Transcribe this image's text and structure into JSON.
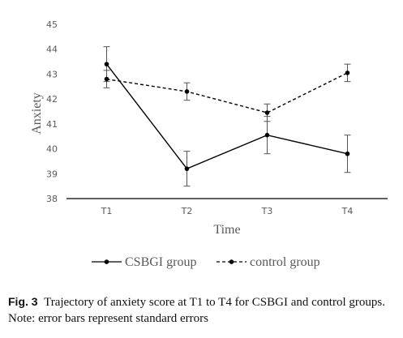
{
  "chart_data": {
    "type": "line",
    "categories": [
      "T1",
      "T2",
      "T3",
      "T4"
    ],
    "xlabel": "Time",
    "ylabel": "Anxiety",
    "ylim": [
      38,
      45
    ],
    "yticks": [
      38,
      39,
      40,
      41,
      42,
      43,
      44,
      45
    ],
    "grid": false,
    "legend_position": "bottom",
    "series": [
      {
        "name": "CSBGI group",
        "style": "solid",
        "color": "#000000",
        "values": [
          43.4,
          39.2,
          40.55,
          39.8
        ],
        "errors": [
          0.7,
          0.7,
          0.75,
          0.75
        ]
      },
      {
        "name": "control group",
        "style": "dashed",
        "color": "#000000",
        "values": [
          42.8,
          42.3,
          41.45,
          43.05
        ],
        "errors": [
          0.35,
          0.35,
          0.35,
          0.35
        ]
      }
    ]
  },
  "caption": {
    "label": "Fig. 3",
    "text": "Trajectory of anxiety score at T1 to T4 for CSBGI and control groups. Note: error bars represent standard errors"
  }
}
